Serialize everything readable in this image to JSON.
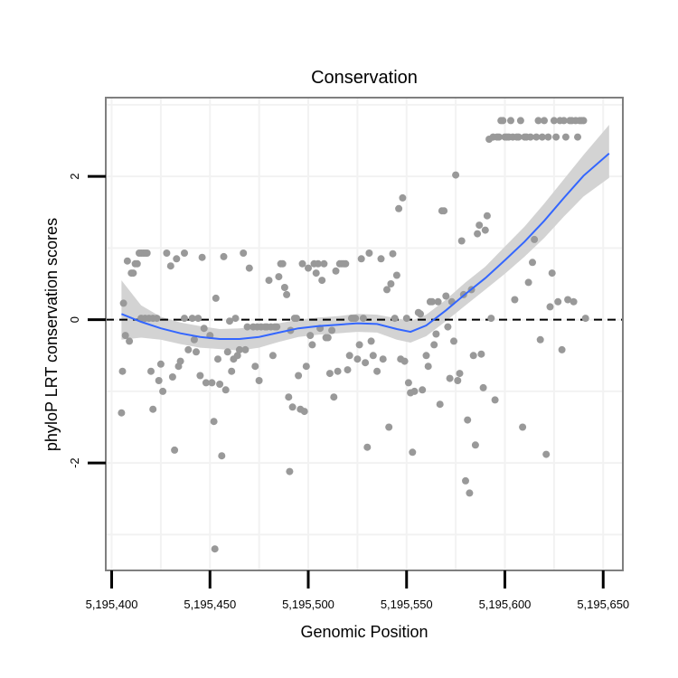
{
  "chart_data": {
    "type": "scatter",
    "title": "Conservation",
    "xlabel": "Genomic Position",
    "ylabel": "phyloP LRT conservation scores",
    "xlim": [
      5195397,
      5195660
    ],
    "ylim": [
      -3.5,
      3.1
    ],
    "x_ticks": [
      5195400,
      5195450,
      5195500,
      5195550,
      5195600,
      5195650
    ],
    "x_tick_labels": [
      "5,195,400",
      "5,195,450",
      "5,195,500",
      "5,195,550",
      "5,195,600",
      "5,195,650"
    ],
    "y_ticks": [
      -2,
      0,
      2
    ],
    "y_tick_labels": [
      "-2",
      "0",
      "2"
    ],
    "reference_line_y": 0,
    "grid": true,
    "colors": {
      "points": "#999999",
      "smooth_line": "#3366ff",
      "confidence_band": "#d3d3d3",
      "panel_border": "#7f7f7f",
      "grid": "#f2f2f2",
      "reference_line": "#000000"
    },
    "points": [
      [
        5195405,
        -1.3
      ],
      [
        5195405.5,
        -0.72
      ],
      [
        5195406,
        0.23
      ],
      [
        5195407,
        -0.22
      ],
      [
        5195408,
        0.82
      ],
      [
        5195409,
        -0.3
      ],
      [
        5195410,
        0.65
      ],
      [
        5195411,
        0.65
      ],
      [
        5195412,
        0.78
      ],
      [
        5195413,
        0.78
      ],
      [
        5195414,
        0.93
      ],
      [
        5195415,
        0.93
      ],
      [
        5195416,
        0.93
      ],
      [
        5195417,
        0.93
      ],
      [
        5195418,
        0.93
      ],
      [
        5195415,
        0.02
      ],
      [
        5195417,
        0.02
      ],
      [
        5195419,
        0.02
      ],
      [
        5195421,
        0.02
      ],
      [
        5195423,
        0.02
      ],
      [
        5195420,
        -0.72
      ],
      [
        5195421,
        -1.25
      ],
      [
        5195424,
        -0.85
      ],
      [
        5195425,
        -0.62
      ],
      [
        5195426,
        -1.0
      ],
      [
        5195428,
        0.93
      ],
      [
        5195430,
        0.75
      ],
      [
        5195431,
        -0.8
      ],
      [
        5195432,
        -1.82
      ],
      [
        5195433,
        0.85
      ],
      [
        5195434,
        -0.65
      ],
      [
        5195435,
        -0.58
      ],
      [
        5195437,
        0.93
      ],
      [
        5195437,
        0.02
      ],
      [
        5195439,
        -0.42
      ],
      [
        5195441,
        0.02
      ],
      [
        5195442,
        -0.28
      ],
      [
        5195443,
        -0.45
      ],
      [
        5195444,
        0.02
      ],
      [
        5195445,
        -0.78
      ],
      [
        5195446,
        0.87
      ],
      [
        5195447,
        -0.12
      ],
      [
        5195448,
        -0.88
      ],
      [
        5195450,
        -0.22
      ],
      [
        5195451,
        -0.88
      ],
      [
        5195452,
        -1.42
      ],
      [
        5195452.5,
        -3.2
      ],
      [
        5195453,
        0.3
      ],
      [
        5195454,
        -0.55
      ],
      [
        5195455,
        -0.9
      ],
      [
        5195456,
        -1.9
      ],
      [
        5195457,
        0.88
      ],
      [
        5195458,
        -0.98
      ],
      [
        5195459,
        -0.45
      ],
      [
        5195460,
        -0.02
      ],
      [
        5195461,
        -0.72
      ],
      [
        5195462,
        -0.55
      ],
      [
        5195463,
        0.02
      ],
      [
        5195464,
        -0.5
      ],
      [
        5195465,
        -0.42
      ],
      [
        5195467,
        0.93
      ],
      [
        5195468,
        -0.42
      ],
      [
        5195469,
        -0.1
      ],
      [
        5195470,
        0.72
      ],
      [
        5195472,
        -0.1
      ],
      [
        5195473,
        -0.65
      ],
      [
        5195474,
        -0.1
      ],
      [
        5195475,
        -0.85
      ],
      [
        5195476,
        -0.1
      ],
      [
        5195478,
        -0.1
      ],
      [
        5195479,
        -0.1
      ],
      [
        5195480,
        0.55
      ],
      [
        5195481,
        -0.1
      ],
      [
        5195482,
        -0.5
      ],
      [
        5195483,
        -0.1
      ],
      [
        5195484,
        -0.1
      ],
      [
        5195485,
        0.6
      ],
      [
        5195486,
        0.78
      ],
      [
        5195487,
        0.78
      ],
      [
        5195488,
        0.45
      ],
      [
        5195489,
        0.35
      ],
      [
        5195490,
        -1.08
      ],
      [
        5195490.5,
        -2.12
      ],
      [
        5195491,
        -0.15
      ],
      [
        5195492,
        -1.22
      ],
      [
        5195493,
        0.02
      ],
      [
        5195494,
        0.02
      ],
      [
        5195495,
        -0.78
      ],
      [
        5195496,
        -1.25
      ],
      [
        5195497,
        0.78
      ],
      [
        5195498,
        -1.28
      ],
      [
        5195499,
        -0.65
      ],
      [
        5195500,
        0.72
      ],
      [
        5195501,
        -0.22
      ],
      [
        5195502,
        -0.35
      ],
      [
        5195503,
        0.78
      ],
      [
        5195504,
        0.65
      ],
      [
        5195505,
        0.78
      ],
      [
        5195506,
        -0.12
      ],
      [
        5195507,
        0.55
      ],
      [
        5195508,
        0.78
      ],
      [
        5195509,
        -0.25
      ],
      [
        5195510,
        -0.25
      ],
      [
        5195511,
        -0.75
      ],
      [
        5195512,
        -0.15
      ],
      [
        5195513,
        -1.08
      ],
      [
        5195514,
        0.68
      ],
      [
        5195515,
        -0.72
      ],
      [
        5195516,
        0.78
      ],
      [
        5195517,
        0.78
      ],
      [
        5195518,
        0.78
      ],
      [
        5195519,
        0.78
      ],
      [
        5195520,
        -0.7
      ],
      [
        5195521,
        -0.5
      ],
      [
        5195522,
        0.02
      ],
      [
        5195523,
        0.02
      ],
      [
        5195524,
        0.02
      ],
      [
        5195525,
        -0.55
      ],
      [
        5195526,
        -0.35
      ],
      [
        5195527,
        0.85
      ],
      [
        5195528,
        0.02
      ],
      [
        5195529,
        -0.6
      ],
      [
        5195530,
        -1.78
      ],
      [
        5195531,
        0.93
      ],
      [
        5195532,
        -0.3
      ],
      [
        5195533,
        -0.5
      ],
      [
        5195535,
        -0.72
      ],
      [
        5195537,
        0.85
      ],
      [
        5195538,
        -0.55
      ],
      [
        5195540,
        0.42
      ],
      [
        5195541,
        -1.5
      ],
      [
        5195542,
        0.5
      ],
      [
        5195543,
        0.92
      ],
      [
        5195544,
        0.02
      ],
      [
        5195545,
        0.62
      ],
      [
        5195546,
        1.55
      ],
      [
        5195547,
        -0.55
      ],
      [
        5195548,
        1.7
      ],
      [
        5195549,
        -0.58
      ],
      [
        5195550,
        0.02
      ],
      [
        5195551,
        -0.88
      ],
      [
        5195552,
        -1.02
      ],
      [
        5195553,
        -1.85
      ],
      [
        5195554,
        -1.0
      ],
      [
        5195556,
        0.1
      ],
      [
        5195557,
        0.08
      ],
      [
        5195558,
        -0.98
      ],
      [
        5195560,
        -0.5
      ],
      [
        5195561,
        -0.65
      ],
      [
        5195562,
        0.25
      ],
      [
        5195563,
        0.25
      ],
      [
        5195564,
        -0.35
      ],
      [
        5195565,
        -0.2
      ],
      [
        5195566,
        0.25
      ],
      [
        5195567,
        -1.18
      ],
      [
        5195568,
        1.52
      ],
      [
        5195569,
        1.52
      ],
      [
        5195570,
        0.33
      ],
      [
        5195571,
        -0.1
      ],
      [
        5195572,
        -0.82
      ],
      [
        5195573,
        0.25
      ],
      [
        5195574,
        -0.3
      ],
      [
        5195575,
        2.02
      ],
      [
        5195576,
        -0.85
      ],
      [
        5195577,
        -0.75
      ],
      [
        5195578,
        1.1
      ],
      [
        5195579,
        0.35
      ],
      [
        5195580,
        -2.25
      ],
      [
        5195581,
        -1.4
      ],
      [
        5195582,
        -2.42
      ],
      [
        5195583,
        0.42
      ],
      [
        5195584,
        -0.5
      ],
      [
        5195585,
        -1.75
      ],
      [
        5195586,
        1.2
      ],
      [
        5195587,
        1.32
      ],
      [
        5195588,
        -0.48
      ],
      [
        5195589,
        -0.95
      ],
      [
        5195590,
        1.25
      ],
      [
        5195591,
        1.45
      ],
      [
        5195592,
        2.52
      ],
      [
        5195593,
        0.02
      ],
      [
        5195594,
        2.55
      ],
      [
        5195595,
        -1.12
      ],
      [
        5195596,
        2.55
      ],
      [
        5195597,
        2.55
      ],
      [
        5195598,
        2.78
      ],
      [
        5195599,
        2.78
      ],
      [
        5195600,
        2.55
      ],
      [
        5195601,
        2.55
      ],
      [
        5195602,
        2.55
      ],
      [
        5195603,
        2.78
      ],
      [
        5195604,
        2.55
      ],
      [
        5195605,
        0.28
      ],
      [
        5195606,
        2.55
      ],
      [
        5195607,
        2.55
      ],
      [
        5195608,
        2.78
      ],
      [
        5195609,
        -1.5
      ],
      [
        5195610,
        2.55
      ],
      [
        5195611,
        2.55
      ],
      [
        5195612,
        0.52
      ],
      [
        5195613,
        2.55
      ],
      [
        5195614,
        0.8
      ],
      [
        5195615,
        1.12
      ],
      [
        5195616,
        2.55
      ],
      [
        5195617,
        2.78
      ],
      [
        5195618,
        -0.28
      ],
      [
        5195619,
        2.55
      ],
      [
        5195620,
        2.78
      ],
      [
        5195621,
        -1.88
      ],
      [
        5195622,
        2.55
      ],
      [
        5195623,
        0.18
      ],
      [
        5195624,
        0.65
      ],
      [
        5195625,
        2.78
      ],
      [
        5195626,
        2.55
      ],
      [
        5195627,
        0.25
      ],
      [
        5195628,
        2.78
      ],
      [
        5195629,
        -0.42
      ],
      [
        5195630,
        2.78
      ],
      [
        5195631,
        2.55
      ],
      [
        5195632,
        0.28
      ],
      [
        5195633,
        2.78
      ],
      [
        5195634,
        2.78
      ],
      [
        5195635,
        0.25
      ],
      [
        5195636,
        2.78
      ],
      [
        5195637,
        2.55
      ],
      [
        5195638,
        2.78
      ],
      [
        5195639,
        2.78
      ],
      [
        5195640,
        2.78
      ],
      [
        5195641,
        0.02
      ]
    ],
    "smooth": {
      "x": [
        5195405,
        5195415,
        5195425,
        5195435,
        5195445,
        5195455,
        5195465,
        5195475,
        5195485,
        5195495,
        5195505,
        5195515,
        5195525,
        5195535,
        5195545,
        5195552,
        5195560,
        5195570,
        5195580,
        5195590,
        5195600,
        5195610,
        5195620,
        5195630,
        5195640,
        5195653
      ],
      "y": [
        0.08,
        -0.03,
        -0.12,
        -0.19,
        -0.24,
        -0.27,
        -0.27,
        -0.24,
        -0.18,
        -0.12,
        -0.09,
        -0.07,
        -0.05,
        -0.06,
        -0.13,
        -0.17,
        -0.08,
        0.13,
        0.36,
        0.58,
        0.83,
        1.09,
        1.38,
        1.7,
        2.01,
        2.32
      ],
      "lower": [
        -0.28,
        -0.25,
        -0.28,
        -0.34,
        -0.39,
        -0.41,
        -0.43,
        -0.39,
        -0.31,
        -0.24,
        -0.21,
        -0.19,
        -0.17,
        -0.18,
        -0.28,
        -0.32,
        -0.23,
        -0.02,
        0.2,
        0.42,
        0.64,
        0.88,
        1.14,
        1.44,
        1.72,
        1.98
      ],
      "upper": [
        0.55,
        0.2,
        0.04,
        -0.04,
        -0.09,
        -0.13,
        -0.12,
        -0.09,
        -0.05,
        0.0,
        0.03,
        0.05,
        0.08,
        0.07,
        0.02,
        -0.02,
        0.07,
        0.28,
        0.52,
        0.74,
        1.02,
        1.3,
        1.62,
        1.96,
        2.3,
        2.72
      ]
    }
  }
}
